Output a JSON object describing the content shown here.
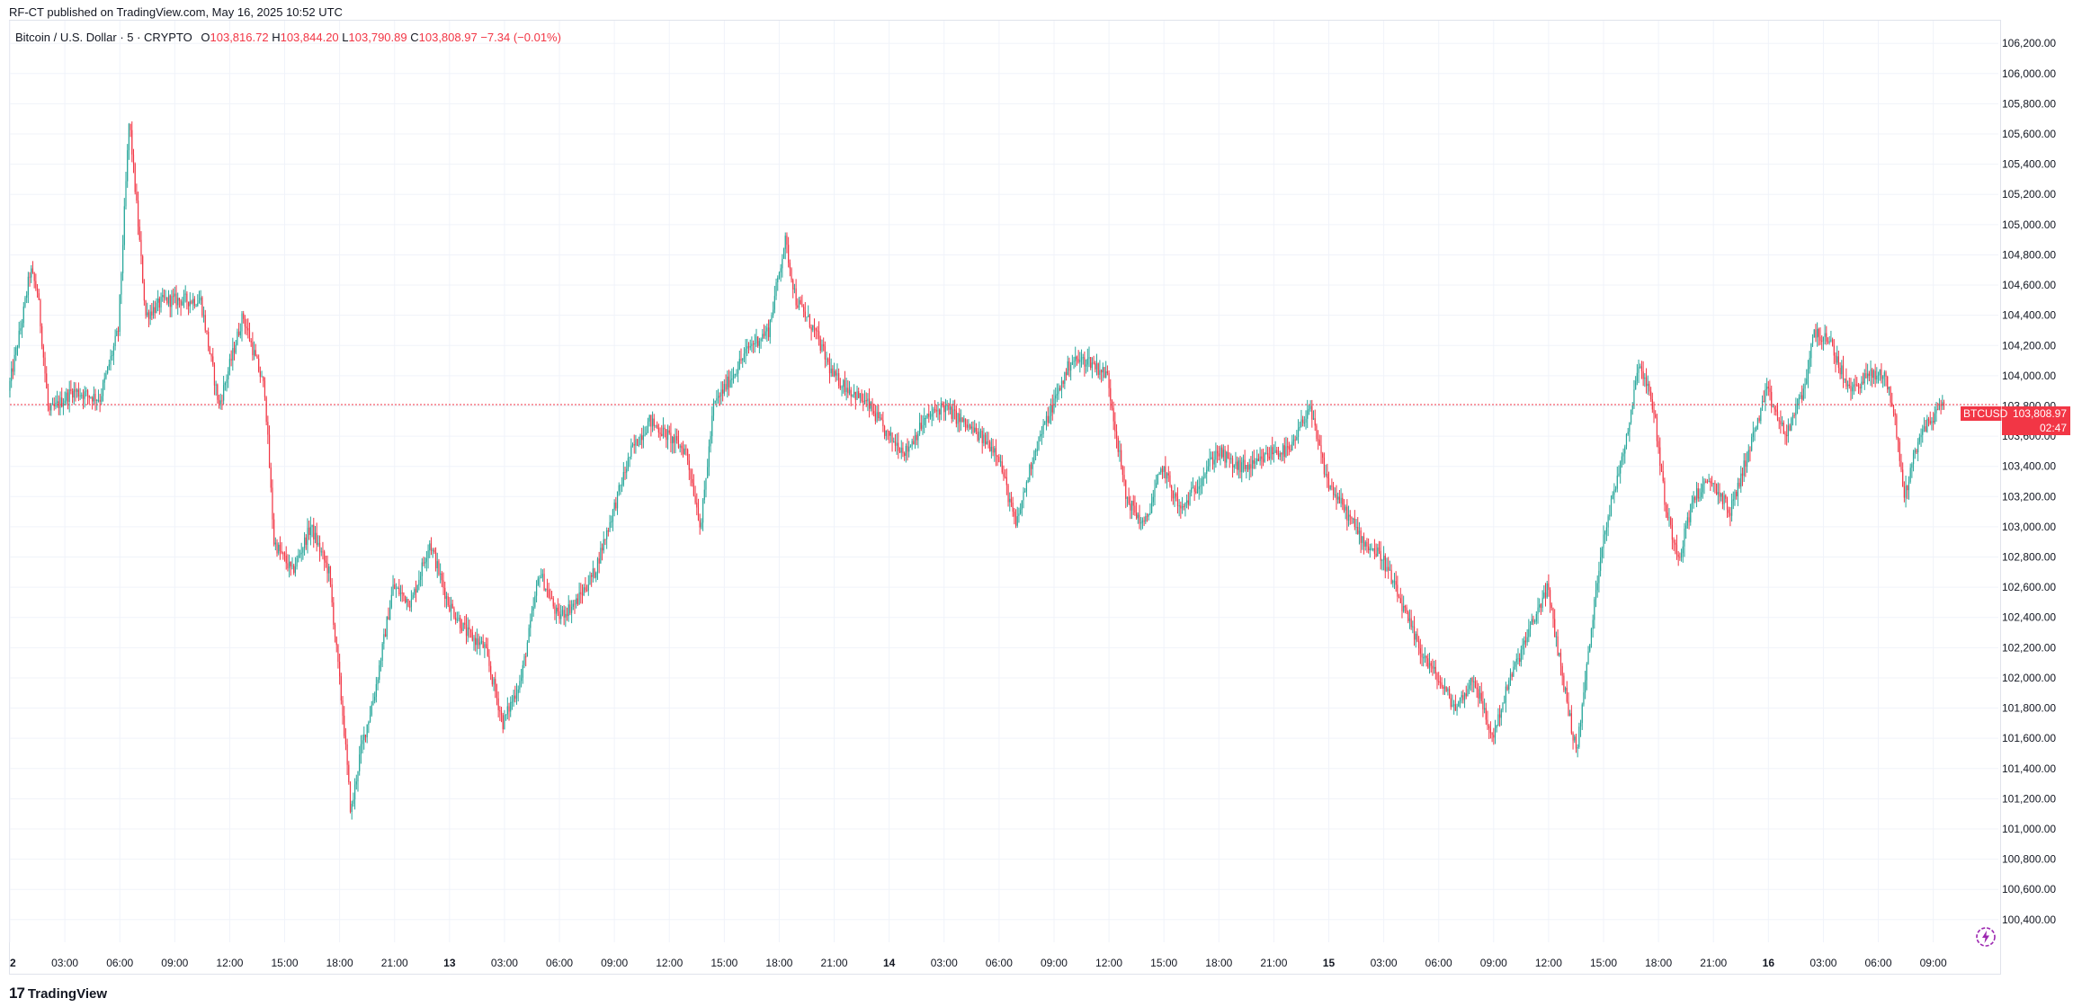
{
  "header": {
    "published_text": "RF-CT published on TradingView.com, May 16, 2025 10:52 UTC"
  },
  "legend": {
    "symbol": "Bitcoin / U.S. Dollar · 5 · CRYPTO",
    "o_label": "O",
    "o_value": "103,816.72",
    "h_label": "H",
    "h_value": "103,844.20",
    "l_label": "L",
    "l_value": "103,790.89",
    "c_label": "C",
    "c_value": "103,808.97",
    "change": "−7.34 (−0.01%)"
  },
  "price_tag": {
    "symbol": "BTCUSD",
    "value": "103,808.97",
    "countdown": "02:47"
  },
  "footer": {
    "brand": "TradingView",
    "logo_text": "17"
  },
  "colors": {
    "up": "#26a69a",
    "down": "#f23645",
    "grid": "#f0f3fa",
    "axis_text": "#131722",
    "last_price_line": "#f23645"
  },
  "icons": {
    "brand_logo": "tradingview-logo-icon",
    "bolt": "lightning-icon"
  },
  "chart_data": {
    "type": "candlestick",
    "title": "Bitcoin / U.S. Dollar · 5 · CRYPTO",
    "xlabel": "",
    "ylabel": "",
    "ylim": [
      100250,
      106350
    ],
    "y_ticks": [
      "100,400.00",
      "100,600.00",
      "100,800.00",
      "101,000.00",
      "101,200.00",
      "101,400.00",
      "101,600.00",
      "101,800.00",
      "102,000.00",
      "102,200.00",
      "102,400.00",
      "102,600.00",
      "102,800.00",
      "103,000.00",
      "103,200.00",
      "103,400.00",
      "103,600.00",
      "103,800.00",
      "104,000.00",
      "104,200.00",
      "104,400.00",
      "104,600.00",
      "104,800.00",
      "105,000.00",
      "105,200.00",
      "105,400.00",
      "105,600.00",
      "105,800.00",
      "106,000.00",
      "106,200.00"
    ],
    "x_ticks": [
      "2",
      "03:00",
      "06:00",
      "09:00",
      "12:00",
      "15:00",
      "18:00",
      "21:00",
      "13",
      "03:00",
      "06:00",
      "09:00",
      "12:00",
      "15:00",
      "18:00",
      "21:00",
      "14",
      "03:00",
      "06:00",
      "09:00",
      "12:00",
      "15:00",
      "18:00",
      "21:00",
      "15",
      "03:00",
      "06:00",
      "09:00",
      "12:00",
      "15:00",
      "18:00",
      "21:00",
      "16",
      "03:00",
      "06:00",
      "09:00"
    ],
    "x_range_hours": [
      0,
      106
    ],
    "last_price": 103808.97,
    "grid": true,
    "price_path": [
      {
        "t": 0,
        "p": 103900
      },
      {
        "t": 0.8,
        "p": 104400
      },
      {
        "t": 1.2,
        "p": 104700
      },
      {
        "t": 1.6,
        "p": 104550
      },
      {
        "t": 2.2,
        "p": 103750
      },
      {
        "t": 3.5,
        "p": 103900
      },
      {
        "t": 5,
        "p": 103850
      },
      {
        "t": 6,
        "p": 104300
      },
      {
        "t": 6.6,
        "p": 105700
      },
      {
        "t": 7.5,
        "p": 104400
      },
      {
        "t": 8.5,
        "p": 104500
      },
      {
        "t": 10.5,
        "p": 104500
      },
      {
        "t": 11.5,
        "p": 103800
      },
      {
        "t": 12.8,
        "p": 104400
      },
      {
        "t": 14,
        "p": 103900
      },
      {
        "t": 14.5,
        "p": 102900
      },
      {
        "t": 15.5,
        "p": 102700
      },
      {
        "t": 16.5,
        "p": 103000
      },
      {
        "t": 17.5,
        "p": 102700
      },
      {
        "t": 18.3,
        "p": 101700
      },
      {
        "t": 18.7,
        "p": 101100
      },
      {
        "t": 19.2,
        "p": 101500
      },
      {
        "t": 20,
        "p": 101900
      },
      {
        "t": 21,
        "p": 102600
      },
      {
        "t": 22,
        "p": 102500
      },
      {
        "t": 23,
        "p": 102900
      },
      {
        "t": 24,
        "p": 102500
      },
      {
        "t": 25,
        "p": 102300
      },
      {
        "t": 26,
        "p": 102200
      },
      {
        "t": 27,
        "p": 101700
      },
      {
        "t": 28,
        "p": 102000
      },
      {
        "t": 29,
        "p": 102700
      },
      {
        "t": 30,
        "p": 102400
      },
      {
        "t": 31,
        "p": 102500
      },
      {
        "t": 32,
        "p": 102700
      },
      {
        "t": 33,
        "p": 103100
      },
      {
        "t": 34,
        "p": 103500
      },
      {
        "t": 35,
        "p": 103700
      },
      {
        "t": 36,
        "p": 103600
      },
      {
        "t": 37,
        "p": 103500
      },
      {
        "t": 37.8,
        "p": 103000
      },
      {
        "t": 38.5,
        "p": 103800
      },
      {
        "t": 39.5,
        "p": 104000
      },
      {
        "t": 40.5,
        "p": 104200
      },
      {
        "t": 41.5,
        "p": 104300
      },
      {
        "t": 42.4,
        "p": 104900
      },
      {
        "t": 43,
        "p": 104500
      },
      {
        "t": 44,
        "p": 104300
      },
      {
        "t": 45,
        "p": 104000
      },
      {
        "t": 46,
        "p": 103900
      },
      {
        "t": 47,
        "p": 103800
      },
      {
        "t": 48,
        "p": 103600
      },
      {
        "t": 49,
        "p": 103500
      },
      {
        "t": 50,
        "p": 103700
      },
      {
        "t": 51,
        "p": 103800
      },
      {
        "t": 52,
        "p": 103700
      },
      {
        "t": 53,
        "p": 103600
      },
      {
        "t": 54,
        "p": 103500
      },
      {
        "t": 55,
        "p": 103000
      },
      {
        "t": 56,
        "p": 103500
      },
      {
        "t": 57,
        "p": 103800
      },
      {
        "t": 58,
        "p": 104100
      },
      {
        "t": 59,
        "p": 104100
      },
      {
        "t": 60,
        "p": 104000
      },
      {
        "t": 61,
        "p": 103200
      },
      {
        "t": 62,
        "p": 103000
      },
      {
        "t": 63,
        "p": 103400
      },
      {
        "t": 64,
        "p": 103100
      },
      {
        "t": 65,
        "p": 103300
      },
      {
        "t": 66,
        "p": 103500
      },
      {
        "t": 67,
        "p": 103400
      },
      {
        "t": 68,
        "p": 103400
      },
      {
        "t": 69,
        "p": 103500
      },
      {
        "t": 70,
        "p": 103500
      },
      {
        "t": 71,
        "p": 103800
      },
      {
        "t": 72,
        "p": 103300
      },
      {
        "t": 73,
        "p": 103100
      },
      {
        "t": 74,
        "p": 102900
      },
      {
        "t": 75,
        "p": 102800
      },
      {
        "t": 76,
        "p": 102500
      },
      {
        "t": 77,
        "p": 102200
      },
      {
        "t": 78,
        "p": 102000
      },
      {
        "t": 79,
        "p": 101800
      },
      {
        "t": 80,
        "p": 102000
      },
      {
        "t": 81,
        "p": 101600
      },
      {
        "t": 82,
        "p": 102000
      },
      {
        "t": 83,
        "p": 102300
      },
      {
        "t": 84,
        "p": 102600
      },
      {
        "t": 85,
        "p": 101900
      },
      {
        "t": 85.6,
        "p": 101500
      },
      {
        "t": 86.5,
        "p": 102400
      },
      {
        "t": 87,
        "p": 102900
      },
      {
        "t": 87.6,
        "p": 103200
      },
      {
        "t": 88.5,
        "p": 103700
      },
      {
        "t": 89,
        "p": 104100
      },
      {
        "t": 89.8,
        "p": 103800
      },
      {
        "t": 90.5,
        "p": 103100
      },
      {
        "t": 91.2,
        "p": 102800
      },
      {
        "t": 92,
        "p": 103200
      },
      {
        "t": 93,
        "p": 103300
      },
      {
        "t": 94,
        "p": 103100
      },
      {
        "t": 95,
        "p": 103500
      },
      {
        "t": 96,
        "p": 103900
      },
      {
        "t": 97,
        "p": 103600
      },
      {
        "t": 98,
        "p": 103900
      },
      {
        "t": 98.6,
        "p": 104300
      },
      {
        "t": 99.5,
        "p": 104200
      },
      {
        "t": 100.5,
        "p": 103900
      },
      {
        "t": 101.5,
        "p": 104000
      },
      {
        "t": 102.5,
        "p": 104000
      },
      {
        "t": 103,
        "p": 103700
      },
      {
        "t": 103.5,
        "p": 103200
      },
      {
        "t": 104.3,
        "p": 103600
      },
      {
        "t": 105.5,
        "p": 103800
      }
    ]
  }
}
